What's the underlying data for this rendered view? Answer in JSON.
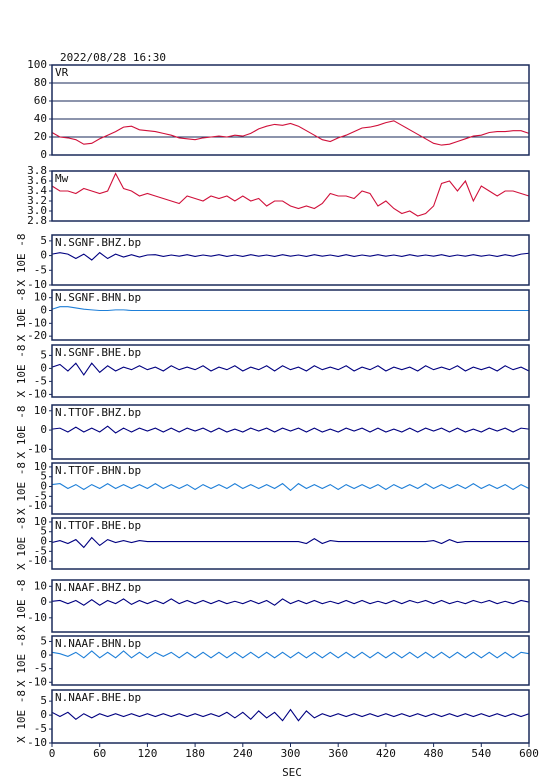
{
  "chart_data": {
    "type": "line",
    "title": "2022/08/28 16:30",
    "xlabel": "SEC",
    "x": [
      0,
      10,
      20,
      30,
      40,
      50,
      60,
      70,
      80,
      90,
      100,
      110,
      120,
      130,
      140,
      150,
      160,
      170,
      180,
      190,
      200,
      210,
      220,
      230,
      240,
      250,
      260,
      270,
      280,
      290,
      300,
      310,
      320,
      330,
      340,
      350,
      360,
      370,
      380,
      390,
      400,
      410,
      420,
      430,
      440,
      450,
      460,
      470,
      480,
      490,
      500,
      510,
      520,
      530,
      540,
      550,
      560,
      570,
      580,
      590,
      600
    ],
    "xlim": [
      0,
      600
    ],
    "xticks": [
      0,
      60,
      120,
      180,
      240,
      300,
      360,
      420,
      480,
      540,
      600
    ],
    "panels": [
      {
        "label": "VR",
        "color": "#d0103a",
        "grid": true,
        "ylim": [
          0,
          100
        ],
        "yticks": [
          0,
          20,
          40,
          60,
          80,
          100
        ],
        "values": [
          25,
          20,
          19,
          17,
          12,
          13,
          18,
          22,
          26,
          31,
          32,
          28,
          27,
          26,
          24,
          22,
          19,
          18,
          17,
          19,
          20,
          21,
          20,
          22,
          21,
          24,
          29,
          32,
          34,
          33,
          35,
          32,
          27,
          22,
          17,
          15,
          19,
          22,
          26,
          30,
          31,
          33,
          36,
          38,
          33,
          28,
          23,
          18,
          13,
          11,
          12,
          15,
          18,
          21,
          22,
          25,
          26,
          26,
          27,
          27,
          24
        ]
      },
      {
        "label": "Mw",
        "color": "#d0103a",
        "ylim": [
          2.8,
          3.8
        ],
        "yticks": [
          2.8,
          {
            "value": 3,
            "label": "3.0"
          },
          3.2,
          3.4,
          3.6,
          3.8
        ],
        "values": [
          3.5,
          3.4,
          3.4,
          3.35,
          3.45,
          3.4,
          3.35,
          3.4,
          3.75,
          3.45,
          3.4,
          3.3,
          3.35,
          3.3,
          3.25,
          3.2,
          3.15,
          3.3,
          3.25,
          3.2,
          3.3,
          3.25,
          3.3,
          3.2,
          3.3,
          3.2,
          3.25,
          3.1,
          3.2,
          3.2,
          3.1,
          3.05,
          3.1,
          3.05,
          3.15,
          3.35,
          3.3,
          3.3,
          3.25,
          3.4,
          3.35,
          3.1,
          3.2,
          3.05,
          2.95,
          3.0,
          2.9,
          2.95,
          3.1,
          3.55,
          3.6,
          3.4,
          3.6,
          3.2,
          3.5,
          3.4,
          3.3,
          3.4,
          3.4,
          3.35,
          3.3
        ]
      },
      {
        "label": "N.SGNF.BHZ.bp",
        "ylabel": "X 10E -8",
        "color": "#000080",
        "ylim": [
          -10,
          7
        ],
        "yticks": [
          5,
          0,
          -5,
          -10
        ],
        "values": [
          0.5,
          1,
          0.5,
          -1,
          0.5,
          -1.5,
          1,
          -1,
          0.5,
          -0.5,
          0.3,
          -0.5,
          0.2,
          0.3,
          -0.3,
          0.2,
          -0.2,
          0.3,
          -0.3,
          0.2,
          -0.2,
          0.3,
          -0.3,
          0.2,
          -0.3,
          0.3,
          -0.2,
          0.2,
          -0.3,
          0.3,
          -0.2,
          0.2,
          -0.3,
          0.3,
          -0.2,
          0.2,
          -0.3,
          0.3,
          -0.3,
          0.2,
          -0.2,
          0.3,
          -0.2,
          0.2,
          -0.3,
          0.3,
          -0.2,
          0.2,
          -0.2,
          0.3,
          -0.3,
          0.2,
          -0.2,
          0.3,
          -0.2,
          0.2,
          -0.3,
          0.3,
          -0.2,
          0.5,
          0.8
        ]
      },
      {
        "label": "N.SGNF.BHN.bp",
        "ylabel": "X 10E -8",
        "color": "#1e7fd8",
        "ylim": [
          -23,
          16
        ],
        "yticks": [
          10,
          0,
          -10,
          -20
        ],
        "values": [
          1,
          3,
          3,
          2,
          1,
          0.5,
          0,
          0,
          0.5,
          0.5,
          0,
          0,
          0,
          0,
          0,
          0,
          0,
          0,
          0,
          0,
          0,
          0,
          0,
          0,
          0,
          0,
          0,
          0,
          0,
          0,
          0,
          0,
          0,
          0,
          0,
          0,
          0,
          0,
          0,
          0,
          0,
          0,
          0,
          0,
          0,
          0,
          0,
          0,
          0,
          0,
          0,
          0,
          0,
          0,
          0,
          0,
          0,
          0,
          0,
          0,
          0
        ]
      },
      {
        "label": "N.SGNF.BHE.bp",
        "ylabel": "X 10E -8",
        "color": "#000080",
        "ylim": [
          -11,
          9
        ],
        "yticks": [
          5,
          0,
          -5,
          -10
        ],
        "values": [
          0.5,
          1.5,
          -1,
          2,
          -2.5,
          2,
          -1.5,
          1,
          -1,
          0.5,
          -0.5,
          1,
          -0.5,
          0.5,
          -1,
          1,
          -0.5,
          0.5,
          -0.5,
          1,
          -1,
          0.5,
          -0.5,
          1,
          -1,
          0.5,
          -0.5,
          1,
          -1,
          1,
          -0.5,
          0.5,
          -1,
          1,
          -0.5,
          0.5,
          -0.5,
          1,
          -1,
          0.5,
          -0.5,
          1,
          -1,
          0.5,
          -0.5,
          0.5,
          -1,
          1,
          -0.5,
          0.5,
          -0.5,
          1,
          -1,
          0.5,
          -0.5,
          0.5,
          -1,
          1,
          -0.5,
          0.5,
          -1
        ]
      },
      {
        "label": "N.TTOF.BHZ.bp",
        "ylabel": "X 10E -8",
        "color": "#000080",
        "ylim": [
          -15,
          13
        ],
        "yticks": [
          10,
          0,
          -10
        ],
        "values": [
          0.5,
          1,
          -1,
          1.5,
          -1,
          1,
          -1,
          2,
          -1.5,
          1,
          -1,
          1,
          -0.5,
          1,
          -1,
          1,
          -1,
          1,
          -0.5,
          1,
          -1,
          1,
          -1,
          0.5,
          -1,
          1,
          -0.5,
          1,
          -1,
          1,
          -0.5,
          1,
          -1,
          1,
          -1,
          0.5,
          -1,
          1,
          -0.5,
          1,
          -1,
          1,
          -1,
          0.5,
          -1,
          1,
          -1,
          1,
          -0.5,
          1,
          -1,
          1,
          -1,
          0.5,
          -1,
          1,
          -0.5,
          1,
          -1,
          1,
          0.5
        ]
      },
      {
        "label": "N.TTOF.BHN.bp",
        "ylabel": "X 10E -8",
        "color": "#1e7fd8",
        "ylim": [
          -14,
          12
        ],
        "yticks": [
          10,
          5,
          0,
          -5,
          -10
        ],
        "values": [
          1,
          1.5,
          -1,
          1,
          -1.5,
          1,
          -1,
          1.5,
          -1,
          1,
          -1,
          1,
          -1,
          1.5,
          -1,
          1,
          -1,
          1,
          -1.5,
          1,
          -1,
          1,
          -1,
          1.5,
          -1,
          1,
          -1,
          1,
          -1,
          1.5,
          -2,
          1.5,
          -1,
          1,
          -1,
          1,
          -1.5,
          1,
          -1,
          1,
          -1,
          1,
          -1.5,
          1,
          -1,
          1,
          -1,
          1.5,
          -1,
          1,
          -1,
          1,
          -1,
          1.5,
          -1,
          1,
          -1,
          1,
          -1.5,
          1,
          -1
        ]
      },
      {
        "label": "N.TTOF.BHE.bp",
        "ylabel": "X 10E -8",
        "color": "#000080",
        "ylim": [
          -14,
          12
        ],
        "yticks": [
          10,
          5,
          0,
          -5,
          -10
        ],
        "values": [
          -0.5,
          0.5,
          -1,
          1,
          -3,
          2,
          -2,
          1,
          -0.5,
          0.5,
          -0.5,
          0.5,
          0,
          0,
          0,
          0,
          0,
          0,
          0,
          0,
          0,
          0,
          0,
          0,
          0,
          0,
          0,
          0,
          0,
          0,
          0,
          0,
          -1,
          1.5,
          -1,
          0.5,
          0,
          0,
          0,
          0,
          0,
          0,
          0,
          0,
          0,
          0,
          0,
          0,
          0.5,
          -1,
          1,
          -0.5,
          0,
          0,
          0,
          0,
          0,
          0,
          0,
          0,
          0
        ]
      },
      {
        "label": "N.NAAF.BHZ.bp",
        "ylabel": "X 10E -8",
        "color": "#000080",
        "ylim": [
          -19,
          14
        ],
        "yticks": [
          10,
          0,
          -10
        ],
        "values": [
          0.5,
          1,
          -1,
          1,
          -2,
          1.5,
          -2,
          1,
          -1,
          2,
          -1.5,
          1,
          -1,
          1,
          -1,
          2,
          -1,
          1,
          -1,
          1,
          -1,
          1,
          -1,
          0.5,
          -1,
          1,
          -1,
          1,
          -2,
          2,
          -1,
          1,
          -1,
          1,
          -1,
          0.5,
          -1,
          1,
          -1,
          1,
          -1,
          0.5,
          -1,
          1,
          -1,
          1,
          -0.5,
          1,
          -1,
          1,
          -1,
          0.5,
          -1,
          1,
          -0.5,
          1,
          -1,
          0.5,
          -1,
          1,
          0
        ]
      },
      {
        "label": "N.NAAF.BHN.bp",
        "ylabel": "X 10E -8",
        "color": "#1e7fd8",
        "ylim": [
          -11,
          7
        ],
        "yticks": [
          5,
          0,
          -5,
          -10
        ],
        "values": [
          1,
          0.5,
          -0.5,
          1,
          -1,
          1.5,
          -1,
          1,
          -1,
          1.5,
          -1,
          1,
          -1,
          1,
          -0.5,
          1,
          -1,
          1,
          -1,
          1,
          -1,
          1,
          -1,
          1,
          -1,
          1,
          -1,
          1,
          -1,
          1,
          -1,
          1,
          -1,
          1,
          -1,
          1,
          -1,
          1,
          -1,
          1,
          -1,
          1,
          -1,
          1,
          -1,
          1,
          -1,
          1,
          -1,
          1,
          -1,
          1,
          -1,
          1,
          -1,
          1,
          -1,
          1,
          -1,
          1,
          0.5
        ]
      },
      {
        "label": "N.NAAF.BHE.bp",
        "ylabel": "X 10E -8",
        "color": "#000080",
        "ylim": [
          -10,
          9
        ],
        "yticks": [
          5,
          0,
          -5,
          -10
        ],
        "values": [
          1,
          -0.5,
          1,
          -1.5,
          0.5,
          -1,
          0.5,
          -0.5,
          0.5,
          -0.5,
          0.5,
          -0.5,
          0.5,
          -0.5,
          0.5,
          -0.5,
          0.5,
          -0.5,
          0.5,
          -0.5,
          0.5,
          -0.5,
          1,
          -1,
          1,
          -1.5,
          1.5,
          -1,
          1,
          -2,
          2,
          -2,
          1.5,
          -1,
          0.5,
          -0.5,
          0.5,
          -0.5,
          0.5,
          -0.5,
          0.5,
          -0.5,
          0.5,
          -0.5,
          0.5,
          -0.5,
          0.5,
          -0.5,
          0.5,
          -0.5,
          0.5,
          -0.5,
          0.5,
          -0.5,
          0.5,
          -0.5,
          0.5,
          -0.5,
          0.5,
          -0.5,
          0.5
        ]
      }
    ]
  }
}
